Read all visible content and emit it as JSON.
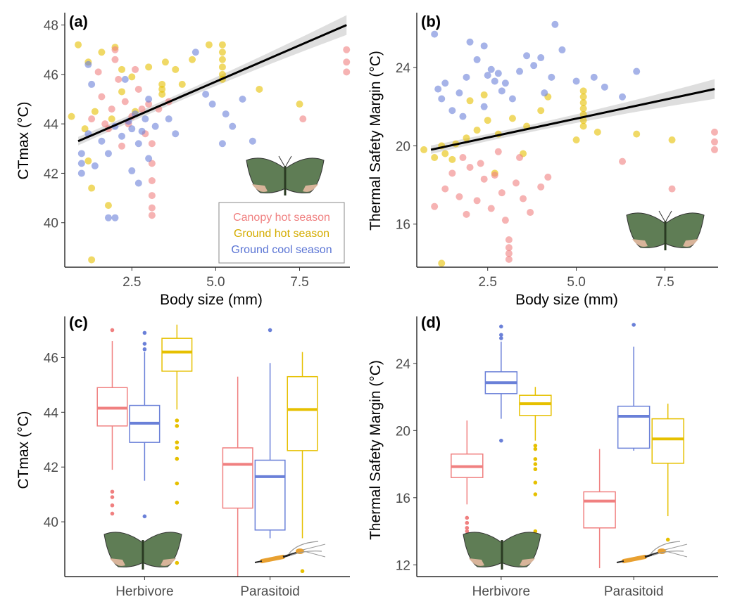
{
  "colors": {
    "canopy_hot": "#f08080",
    "ground_hot": "#e6c000",
    "ground_cool": "#6a80d8"
  },
  "legend": {
    "entries": [
      {
        "label": "Canopy hot season",
        "series": "canopy_hot"
      },
      {
        "label": "Ground hot season",
        "series": "ground_hot"
      },
      {
        "label": "Ground cool season",
        "series": "ground_cool"
      }
    ]
  },
  "chart_data": [
    {
      "panel": "(a)",
      "type": "scatter",
      "xlabel": "Body size (mm)",
      "ylabel": "CTmax (°C)",
      "xlim": [
        0.5,
        9.0
      ],
      "ylim": [
        38.2,
        48.5
      ],
      "xticks": [
        "2.5",
        "5.0",
        "7.5"
      ],
      "xtick_values": [
        2.5,
        5.0,
        7.5
      ],
      "yticks": [
        "40",
        "42",
        "44",
        "46",
        "48"
      ],
      "ytick_values": [
        40,
        42,
        44,
        46,
        48
      ],
      "series": [
        {
          "name": "Canopy hot season",
          "key": "canopy_hot",
          "points": [
            [
              1.3,
              44.2
            ],
            [
              1.6,
              45.1
            ],
            [
              1.9,
              44.6
            ],
            [
              2.1,
              45.8
            ],
            [
              2.3,
              44.9
            ],
            [
              2.5,
              44.3
            ],
            [
              2.7,
              45.4
            ],
            [
              2.9,
              43.6
            ],
            [
              3.0,
              44.8
            ],
            [
              3.1,
              43.2
            ],
            [
              3.1,
              42.4
            ],
            [
              3.1,
              41.7
            ],
            [
              3.1,
              41.1
            ],
            [
              3.1,
              40.6
            ],
            [
              3.1,
              40.3
            ],
            [
              2.2,
              43.1
            ],
            [
              1.5,
              46.1
            ],
            [
              2.0,
              46.6
            ],
            [
              2.6,
              46.2
            ],
            [
              3.3,
              44.6
            ],
            [
              3.6,
              44.9
            ],
            [
              2.4,
              44.0
            ],
            [
              1.8,
              43.8
            ],
            [
              2.8,
              44.6
            ],
            [
              7.6,
              44.2
            ],
            [
              8.9,
              47.0
            ],
            [
              8.9,
              46.5
            ],
            [
              8.9,
              46.1
            ],
            [
              2.0,
              47.0
            ],
            [
              1.7,
              44.0
            ]
          ]
        },
        {
          "name": "Ground hot season",
          "key": "ground_hot",
          "points": [
            [
              0.9,
              47.2
            ],
            [
              1.2,
              46.5
            ],
            [
              1.6,
              46.9
            ],
            [
              2.0,
              47.1
            ],
            [
              2.2,
              46.2
            ],
            [
              2.5,
              45.9
            ],
            [
              3.0,
              46.3
            ],
            [
              3.5,
              46.5
            ],
            [
              3.8,
              46.2
            ],
            [
              4.0,
              45.6
            ],
            [
              4.3,
              46.6
            ],
            [
              4.8,
              47.2
            ],
            [
              1.4,
              44.5
            ],
            [
              1.1,
              43.8
            ],
            [
              1.2,
              42.5
            ],
            [
              1.3,
              41.4
            ],
            [
              1.8,
              40.7
            ],
            [
              1.3,
              38.5
            ],
            [
              2.6,
              44.5
            ],
            [
              3.4,
              45.2
            ],
            [
              3.4,
              45.4
            ],
            [
              3.4,
              45.6
            ],
            [
              5.2,
              47.2
            ],
            [
              5.2,
              46.9
            ],
            [
              5.2,
              46.6
            ],
            [
              5.2,
              46.3
            ],
            [
              5.2,
              46.0
            ],
            [
              5.2,
              45.8
            ],
            [
              6.3,
              45.4
            ],
            [
              7.5,
              44.8
            ],
            [
              2.2,
              45.3
            ],
            [
              1.9,
              44.2
            ],
            [
              0.7,
              44.3
            ]
          ]
        },
        {
          "name": "Ground cool season",
          "key": "ground_cool",
          "points": [
            [
              1.0,
              42.8
            ],
            [
              1.0,
              42.4
            ],
            [
              1.0,
              42.0
            ],
            [
              1.2,
              43.6
            ],
            [
              1.4,
              42.3
            ],
            [
              1.6,
              43.3
            ],
            [
              1.8,
              42.8
            ],
            [
              2.0,
              43.9
            ],
            [
              2.2,
              43.5
            ],
            [
              2.4,
              44.1
            ],
            [
              2.5,
              43.8
            ],
            [
              2.6,
              44.4
            ],
            [
              2.7,
              43.2
            ],
            [
              2.8,
              43.7
            ],
            [
              2.9,
              44.2
            ],
            [
              3.0,
              42.6
            ],
            [
              3.2,
              43.9
            ],
            [
              2.7,
              41.6
            ],
            [
              2.5,
              42.1
            ],
            [
              1.8,
              40.2
            ],
            [
              2.0,
              40.2
            ],
            [
              1.2,
              46.4
            ],
            [
              1.3,
              45.6
            ],
            [
              2.3,
              45.8
            ],
            [
              3.0,
              45.0
            ],
            [
              4.4,
              46.9
            ],
            [
              4.7,
              45.2
            ],
            [
              4.9,
              44.8
            ],
            [
              5.3,
              44.4
            ],
            [
              5.5,
              43.9
            ],
            [
              5.2,
              43.2
            ],
            [
              5.8,
              45.0
            ],
            [
              6.1,
              43.3
            ],
            [
              3.6,
              44.2
            ],
            [
              3.8,
              43.6
            ]
          ]
        }
      ],
      "fit": {
        "x": [
          0.9,
          8.9
        ],
        "y": [
          43.3,
          48.0
        ]
      }
    },
    {
      "panel": "(b)",
      "type": "scatter",
      "xlabel": "Body size (mm)",
      "ylabel": "Thermal Safety Margin (°C)",
      "xlim": [
        0.5,
        9.0
      ],
      "ylim": [
        13.8,
        26.8
      ],
      "xticks": [
        "2.5",
        "5.0",
        "7.5"
      ],
      "xtick_values": [
        2.5,
        5.0,
        7.5
      ],
      "yticks": [
        "16",
        "20",
        "24"
      ],
      "ytick_values": [
        16,
        20,
        24
      ],
      "series": [
        {
          "name": "Canopy hot season",
          "key": "canopy_hot",
          "points": [
            [
              1.0,
              16.9
            ],
            [
              1.3,
              17.8
            ],
            [
              1.5,
              18.6
            ],
            [
              1.7,
              17.4
            ],
            [
              1.9,
              16.5
            ],
            [
              2.0,
              18.9
            ],
            [
              2.2,
              17.2
            ],
            [
              2.4,
              18.3
            ],
            [
              2.6,
              16.8
            ],
            [
              2.7,
              18.5
            ],
            [
              2.9,
              17.6
            ],
            [
              3.0,
              16.2
            ],
            [
              3.1,
              15.2
            ],
            [
              3.1,
              14.8
            ],
            [
              3.1,
              14.5
            ],
            [
              3.1,
              14.2
            ],
            [
              3.3,
              18.1
            ],
            [
              3.5,
              17.3
            ],
            [
              3.7,
              16.6
            ],
            [
              4.0,
              17.9
            ],
            [
              4.2,
              18.4
            ],
            [
              3.4,
              19.4
            ],
            [
              2.8,
              19.7
            ],
            [
              2.3,
              19.1
            ],
            [
              1.8,
              19.4
            ],
            [
              6.3,
              19.2
            ],
            [
              7.7,
              17.8
            ],
            [
              8.9,
              20.7
            ],
            [
              8.9,
              20.2
            ],
            [
              8.9,
              19.8
            ]
          ]
        },
        {
          "name": "Ground hot season",
          "key": "ground_hot",
          "points": [
            [
              0.7,
              19.8
            ],
            [
              1.0,
              19.4
            ],
            [
              1.3,
              19.6
            ],
            [
              1.6,
              20.1
            ],
            [
              1.9,
              20.4
            ],
            [
              2.2,
              20.8
            ],
            [
              2.5,
              21.3
            ],
            [
              2.8,
              20.6
            ],
            [
              3.2,
              21.4
            ],
            [
              3.6,
              21.0
            ],
            [
              4.0,
              21.8
            ],
            [
              4.2,
              22.5
            ],
            [
              1.2,
              20.0
            ],
            [
              1.5,
              19.3
            ],
            [
              1.2,
              14.0
            ],
            [
              2.7,
              18.6
            ],
            [
              3.5,
              19.6
            ],
            [
              5.2,
              22.8
            ],
            [
              5.2,
              22.5
            ],
            [
              5.2,
              22.2
            ],
            [
              5.2,
              21.9
            ],
            [
              5.2,
              21.6
            ],
            [
              5.2,
              21.3
            ],
            [
              5.2,
              21.0
            ],
            [
              5.6,
              20.7
            ],
            [
              6.7,
              20.6
            ],
            [
              7.7,
              20.3
            ],
            [
              5.0,
              20.3
            ],
            [
              2.0,
              22.3
            ],
            [
              2.4,
              22.6
            ]
          ]
        },
        {
          "name": "Ground cool season",
          "key": "ground_cool",
          "points": [
            [
              1.0,
              25.7
            ],
            [
              1.1,
              22.9
            ],
            [
              1.2,
              22.4
            ],
            [
              1.3,
              23.2
            ],
            [
              1.5,
              21.8
            ],
            [
              1.7,
              22.7
            ],
            [
              1.9,
              23.5
            ],
            [
              2.0,
              25.3
            ],
            [
              2.2,
              24.4
            ],
            [
              2.4,
              25.1
            ],
            [
              2.5,
              23.6
            ],
            [
              2.6,
              23.9
            ],
            [
              2.7,
              23.3
            ],
            [
              2.8,
              23.7
            ],
            [
              2.9,
              22.8
            ],
            [
              3.0,
              23.2
            ],
            [
              3.2,
              22.4
            ],
            [
              3.4,
              23.8
            ],
            [
              3.6,
              24.6
            ],
            [
              3.8,
              24.1
            ],
            [
              4.0,
              24.5
            ],
            [
              4.1,
              22.7
            ],
            [
              4.4,
              26.2
            ],
            [
              4.3,
              23.5
            ],
            [
              4.6,
              24.9
            ],
            [
              5.0,
              23.3
            ],
            [
              5.5,
              23.5
            ],
            [
              5.8,
              23.0
            ],
            [
              6.3,
              22.5
            ],
            [
              6.7,
              23.8
            ],
            [
              2.4,
              22.0
            ],
            [
              1.8,
              21.5
            ]
          ]
        }
      ],
      "fit": {
        "x": [
          0.9,
          8.9
        ],
        "y": [
          19.8,
          22.9
        ]
      }
    },
    {
      "panel": "(c)",
      "type": "box",
      "xlabel": "",
      "ylabel": "CTmax (°C)",
      "ylim": [
        38.0,
        47.5
      ],
      "categories": [
        "Herbivore",
        "Parasitoid"
      ],
      "yticks": [
        "40",
        "42",
        "44",
        "46"
      ],
      "ytick_values": [
        40,
        42,
        44,
        46
      ],
      "boxes": [
        {
          "group": "Herbivore",
          "key": "canopy_hot",
          "lower_whisker": 41.9,
          "q1": 43.5,
          "median": 44.15,
          "q3": 44.9,
          "upper_whisker": 46.6,
          "outliers": [
            47.0,
            41.1,
            40.9,
            40.6,
            40.3
          ]
        },
        {
          "group": "Herbivore",
          "key": "ground_cool",
          "lower_whisker": 41.5,
          "q1": 42.9,
          "median": 43.6,
          "q3": 44.25,
          "upper_whisker": 46.2,
          "outliers": [
            46.9,
            46.5,
            46.3,
            40.2
          ]
        },
        {
          "group": "Herbivore",
          "key": "ground_hot",
          "lower_whisker": 44.1,
          "q1": 45.5,
          "median": 46.2,
          "q3": 46.7,
          "upper_whisker": 47.2,
          "outliers": [
            43.7,
            43.5,
            42.9,
            42.7,
            42.3,
            41.4,
            40.7,
            38.5
          ]
        },
        {
          "group": "Parasitoid",
          "key": "canopy_hot",
          "lower_whisker": 38.0,
          "q1": 40.5,
          "median": 42.1,
          "q3": 42.7,
          "upper_whisker": 45.3,
          "outliers": []
        },
        {
          "group": "Parasitoid",
          "key": "ground_cool",
          "lower_whisker": 39.4,
          "q1": 39.7,
          "median": 41.65,
          "q3": 42.25,
          "upper_whisker": 45.8,
          "outliers": [
            47.0
          ]
        },
        {
          "group": "Parasitoid",
          "key": "ground_hot",
          "lower_whisker": 39.4,
          "q1": 42.6,
          "median": 44.1,
          "q3": 45.3,
          "upper_whisker": 46.2,
          "outliers": [
            38.2
          ]
        }
      ]
    },
    {
      "panel": "(d)",
      "type": "box",
      "xlabel": "",
      "ylabel": "Thermal Safety Margin (°C)",
      "ylim": [
        11.3,
        26.8
      ],
      "categories": [
        "Herbivore",
        "Parasitoid"
      ],
      "yticks": [
        "12",
        "16",
        "20",
        "24"
      ],
      "ytick_values": [
        12,
        16,
        20,
        24
      ],
      "boxes": [
        {
          "group": "Herbivore",
          "key": "canopy_hot",
          "lower_whisker": 15.6,
          "q1": 17.2,
          "median": 17.85,
          "q3": 18.6,
          "upper_whisker": 20.6,
          "outliers": [
            14.8,
            14.5,
            14.2,
            14.0
          ]
        },
        {
          "group": "Herbivore",
          "key": "ground_cool",
          "lower_whisker": 20.7,
          "q1": 22.2,
          "median": 22.85,
          "q3": 23.5,
          "upper_whisker": 25.3,
          "outliers": [
            26.2,
            25.7,
            25.5,
            19.4
          ]
        },
        {
          "group": "Herbivore",
          "key": "ground_hot",
          "lower_whisker": 19.4,
          "q1": 20.9,
          "median": 21.6,
          "q3": 22.1,
          "upper_whisker": 22.6,
          "outliers": [
            19.1,
            18.9,
            18.3,
            18.0,
            17.7,
            16.9,
            16.2,
            14.0
          ]
        },
        {
          "group": "Parasitoid",
          "key": "canopy_hot",
          "lower_whisker": 11.8,
          "q1": 14.2,
          "median": 15.8,
          "q3": 16.35,
          "upper_whisker": 18.9,
          "outliers": []
        },
        {
          "group": "Parasitoid",
          "key": "ground_cool",
          "lower_whisker": 18.8,
          "q1": 18.95,
          "median": 20.85,
          "q3": 21.45,
          "upper_whisker": 25.0,
          "outliers": [
            26.3
          ]
        },
        {
          "group": "Parasitoid",
          "key": "ground_hot",
          "lower_whisker": 14.9,
          "q1": 18.05,
          "median": 19.5,
          "q3": 20.7,
          "upper_whisker": 21.6,
          "outliers": [
            13.5
          ]
        }
      ]
    }
  ]
}
